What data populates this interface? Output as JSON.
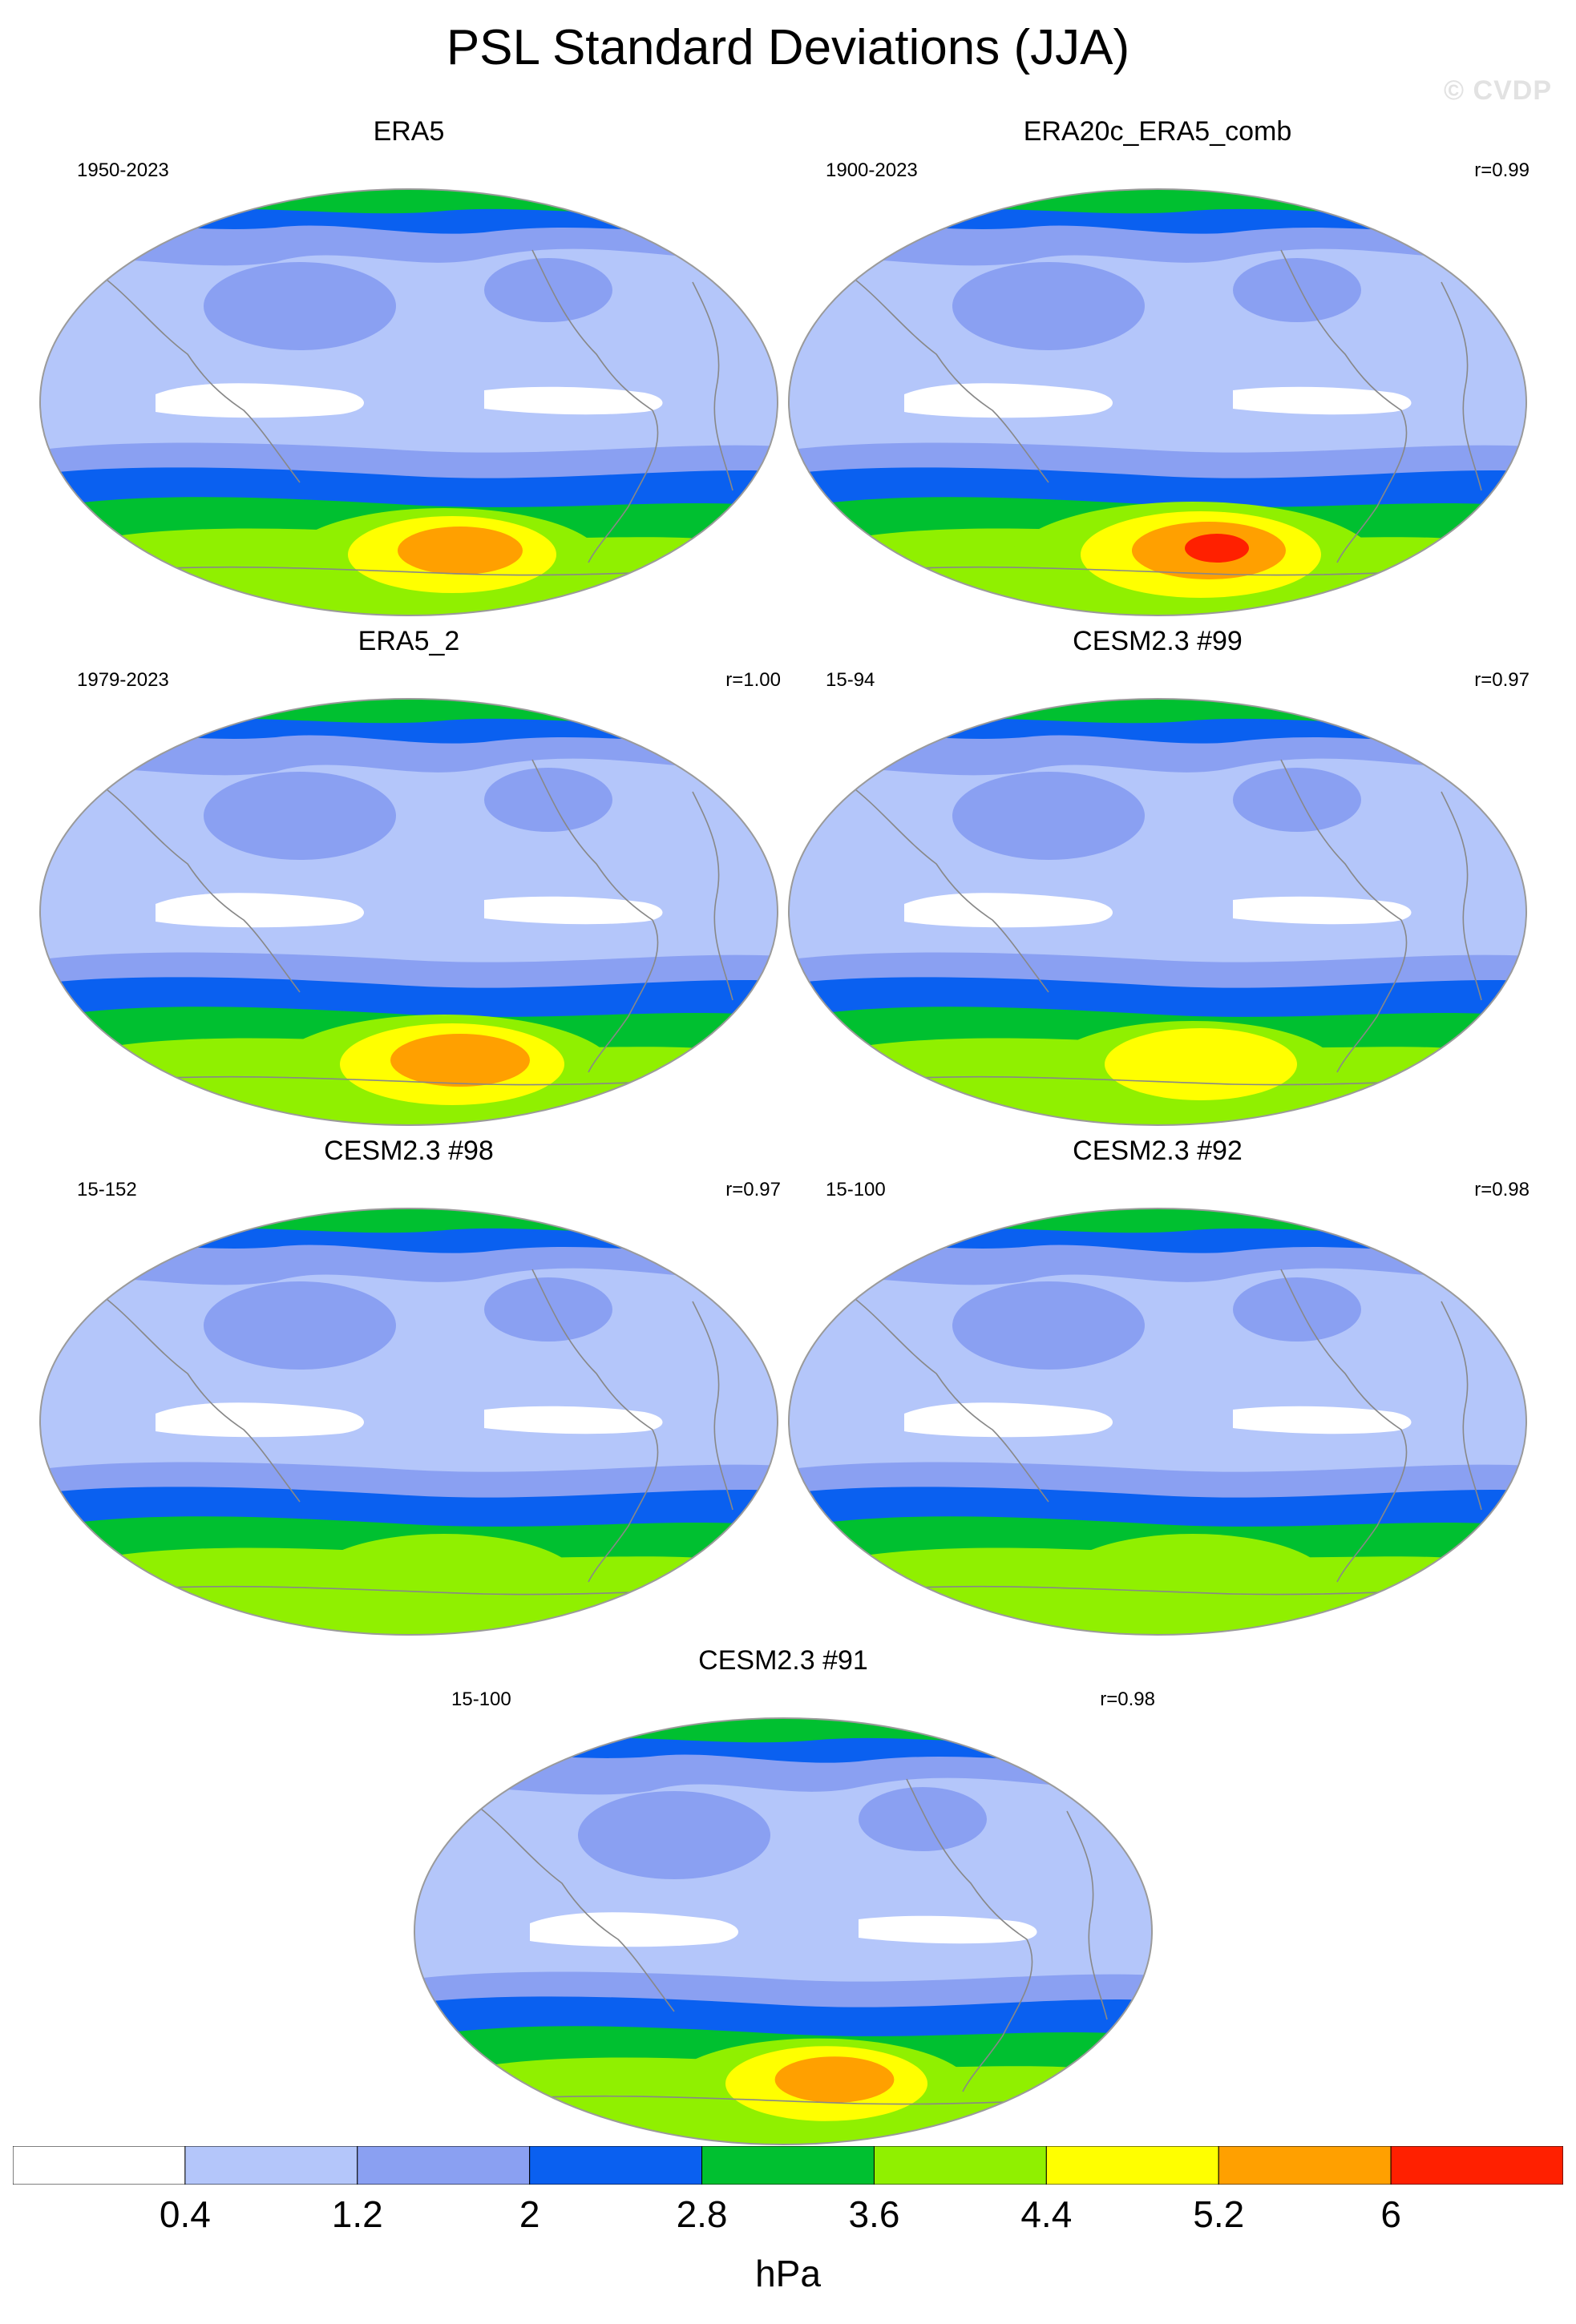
{
  "title": "PSL Standard Deviations (JJA)",
  "watermark": "© CVDP",
  "units": "hPa",
  "colorbar": {
    "levels": [
      "0.4",
      "1.2",
      "2",
      "2.8",
      "3.6",
      "4.4",
      "5.2",
      "6"
    ],
    "colors": [
      "#ffffff",
      "#b4c6fa",
      "#8aa0f2",
      "#0a60f0",
      "#00c030",
      "#90f000",
      "#ffff00",
      "#ffa000",
      "#ff2000"
    ]
  },
  "colors": {
    "coastline": "#888888",
    "map_border": "#9a9a9a"
  },
  "panels": [
    {
      "name": "ERA5",
      "years": "1950-2023",
      "r": "",
      "intensity": 1
    },
    {
      "name": "ERA20c_ERA5_comb",
      "years": "1900-2023",
      "r": "r=0.99",
      "intensity": 2
    },
    {
      "name": "ERA5_2",
      "years": "1979-2023",
      "r": "r=1.00",
      "intensity": 1.5
    },
    {
      "name": "CESM2.3 #99",
      "years": "15-94",
      "r": "r=0.97",
      "intensity": 0.5
    },
    {
      "name": "CESM2.3 #98",
      "years": "15-152",
      "r": "r=0.97",
      "intensity": 0
    },
    {
      "name": "CESM2.3 #92",
      "years": "15-100",
      "r": "r=0.98",
      "intensity": 0
    },
    {
      "name": "CESM2.3 #91",
      "years": "15-100",
      "r": "r=0.98",
      "intensity": 0.8
    }
  ]
}
